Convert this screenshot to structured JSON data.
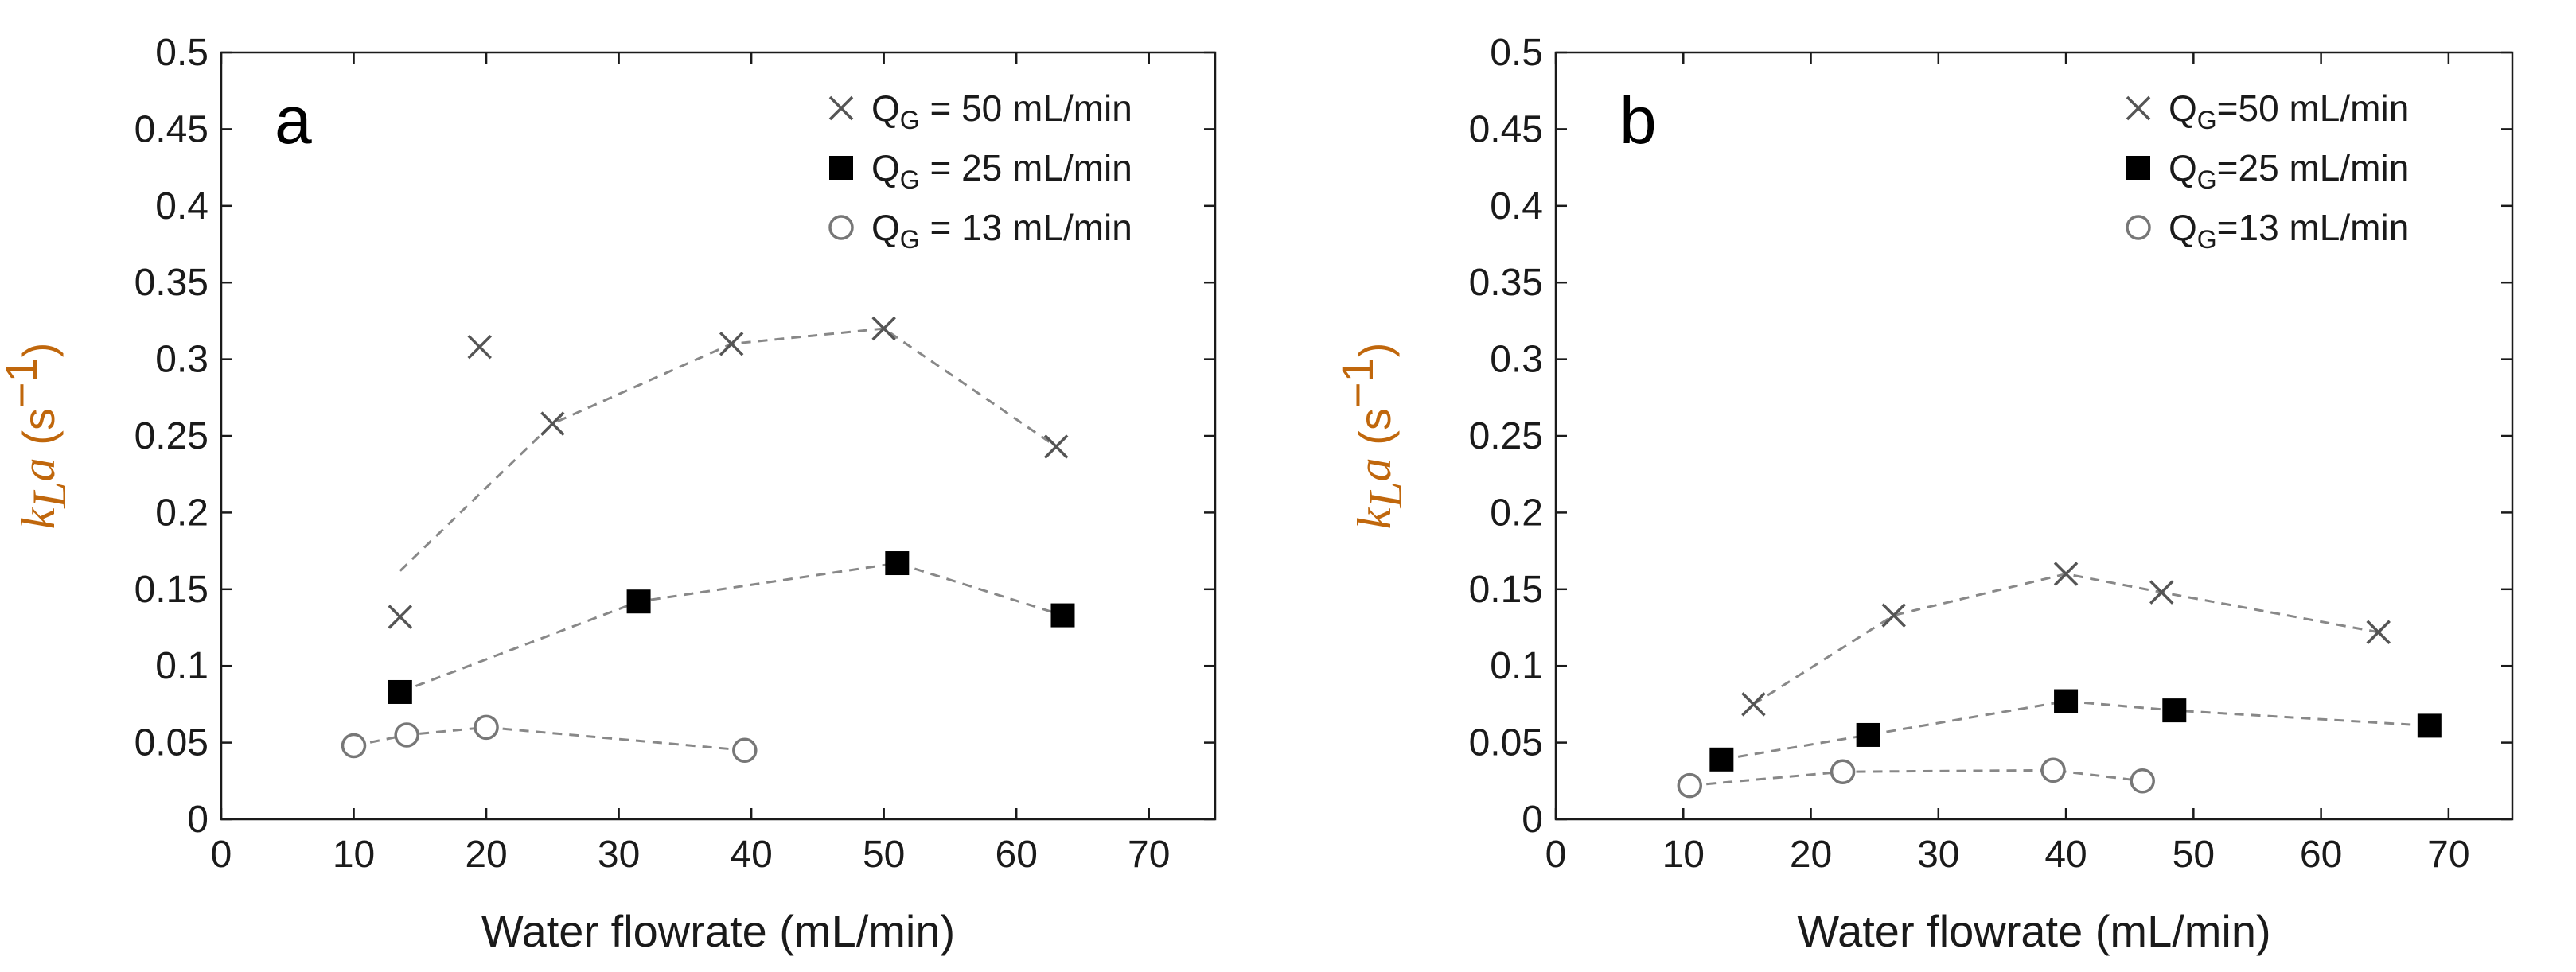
{
  "colors": {
    "axis": "#1a1a1a",
    "cross": "#555555",
    "square": "#000000",
    "circle": "#777777",
    "dashed_line": "#888888",
    "ylabel": "#c0670c"
  },
  "chart_data": [
    {
      "panel": "a",
      "type": "scatter",
      "xlabel": "Water flowrate (mL/min)",
      "ylabel": {
        "k": "k",
        "sub": "L",
        "a": "a",
        "unit_open": " (s",
        "unit_sup": "−1",
        "unit_close": ")"
      },
      "xlim": [
        0,
        75
      ],
      "ylim": [
        0,
        0.5
      ],
      "xticks": [
        0,
        10,
        20,
        30,
        40,
        50,
        60,
        70
      ],
      "yticks": [
        0,
        0.05,
        0.1,
        0.15,
        0.2,
        0.25,
        0.3,
        0.35,
        0.4,
        0.45,
        0.5
      ],
      "xtick_labels": [
        "0",
        "10",
        "20",
        "30",
        "40",
        "50",
        "60",
        "70"
      ],
      "ytick_labels": [
        "0",
        "0.05",
        "0.1",
        "0.15",
        "0.2",
        "0.25",
        "0.3",
        "0.35",
        "0.4",
        "0.45",
        "0.5"
      ],
      "legend_position": "top-right",
      "series": [
        {
          "name": "QG = 50 mL/min",
          "legend": {
            "main": "Q",
            "sub": "G",
            "rest": " = 50 mL/min"
          },
          "marker": "cross",
          "points": [
            [
              13.5,
              0.132
            ],
            [
              19.5,
              0.308
            ],
            [
              25,
              0.258
            ],
            [
              38.5,
              0.31
            ],
            [
              50,
              0.32
            ],
            [
              63,
              0.243
            ]
          ],
          "trend": [
            [
              13.5,
              0.162
            ],
            [
              25,
              0.258
            ],
            [
              38.5,
              0.31
            ],
            [
              50,
              0.32
            ],
            [
              63,
              0.243
            ]
          ]
        },
        {
          "name": "QG = 25 mL/min",
          "legend": {
            "main": "Q",
            "sub": "G",
            "rest": " = 25 mL/min"
          },
          "marker": "square",
          "points": [
            [
              13.5,
              0.083
            ],
            [
              31.5,
              0.142
            ],
            [
              51,
              0.167
            ],
            [
              63.5,
              0.133
            ]
          ],
          "trend": [
            [
              13.5,
              0.083
            ],
            [
              31.5,
              0.142
            ],
            [
              51,
              0.167
            ],
            [
              63.5,
              0.133
            ]
          ]
        },
        {
          "name": "QG = 13 mL/min",
          "legend": {
            "main": "Q",
            "sub": "G",
            "rest": " = 13 mL/min"
          },
          "marker": "circle",
          "points": [
            [
              10,
              0.048
            ],
            [
              14,
              0.055
            ],
            [
              20,
              0.06
            ],
            [
              39.5,
              0.045
            ]
          ],
          "trend": [
            [
              10,
              0.048
            ],
            [
              14,
              0.055
            ],
            [
              20,
              0.06
            ],
            [
              39.5,
              0.045
            ]
          ]
        }
      ]
    },
    {
      "panel": "b",
      "type": "scatter",
      "xlabel": "Water flowrate (mL/min)",
      "ylabel": {
        "k": "k",
        "sub": "L",
        "a": "a",
        "unit_open": " (s",
        "unit_sup": "−1",
        "unit_close": ")"
      },
      "xlim": [
        0,
        75
      ],
      "ylim": [
        0,
        0.5
      ],
      "xticks": [
        0,
        10,
        20,
        30,
        40,
        50,
        60,
        70
      ],
      "yticks": [
        0,
        0.05,
        0.1,
        0.15,
        0.2,
        0.25,
        0.3,
        0.35,
        0.4,
        0.45,
        0.5
      ],
      "xtick_labels": [
        "0",
        "10",
        "20",
        "30",
        "40",
        "50",
        "60",
        "70"
      ],
      "ytick_labels": [
        "0",
        "0.05",
        "0.1",
        "0.15",
        "0.2",
        "0.25",
        "0.3",
        "0.35",
        "0.4",
        "0.45",
        "0.5"
      ],
      "legend_position": "top-right",
      "series": [
        {
          "name": "QG=50 mL/min",
          "legend": {
            "main": "Q",
            "sub": "G",
            "rest": "=50 mL/min"
          },
          "marker": "cross",
          "points": [
            [
              15.5,
              0.075
            ],
            [
              26.5,
              0.133
            ],
            [
              40,
              0.16
            ],
            [
              47.5,
              0.148
            ],
            [
              64.5,
              0.122
            ]
          ],
          "trend": [
            [
              15.5,
              0.075
            ],
            [
              26.5,
              0.133
            ],
            [
              40,
              0.16
            ],
            [
              47.5,
              0.148
            ],
            [
              64.5,
              0.122
            ]
          ]
        },
        {
          "name": "QG=25 mL/min",
          "legend": {
            "main": "Q",
            "sub": "G",
            "rest": "=25 mL/min"
          },
          "marker": "square",
          "points": [
            [
              13,
              0.039
            ],
            [
              24.5,
              0.055
            ],
            [
              40,
              0.077
            ],
            [
              48.5,
              0.071
            ],
            [
              68.5,
              0.061
            ]
          ],
          "trend": [
            [
              13,
              0.039
            ],
            [
              24.5,
              0.055
            ],
            [
              40,
              0.077
            ],
            [
              48.5,
              0.071
            ],
            [
              68.5,
              0.061
            ]
          ]
        },
        {
          "name": "QG=13 mL/min",
          "legend": {
            "main": "Q",
            "sub": "G",
            "rest": "=13 mL/min"
          },
          "marker": "circle",
          "points": [
            [
              10.5,
              0.022
            ],
            [
              22.5,
              0.031
            ],
            [
              39,
              0.032
            ],
            [
              46,
              0.025
            ]
          ],
          "trend": [
            [
              10.5,
              0.022
            ],
            [
              22.5,
              0.031
            ],
            [
              39,
              0.032
            ],
            [
              46,
              0.025
            ]
          ]
        }
      ]
    }
  ]
}
